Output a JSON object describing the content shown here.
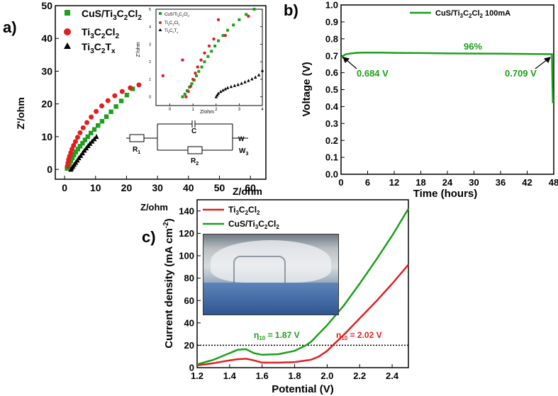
{
  "panels": {
    "a": {
      "letter": "a)"
    },
    "b": {
      "letter": "b)"
    },
    "c": {
      "letter": "c)"
    }
  },
  "chart_data": [
    {
      "id": "a",
      "type": "scatter",
      "title": "",
      "xlabel": "Z/ohm",
      "ylabel": "Z'/ohm",
      "xlim": [
        -3,
        65
      ],
      "ylim": [
        -3,
        50
      ],
      "xticks": [
        "0",
        "10",
        "20",
        "30",
        "40",
        "50",
        "60"
      ],
      "xtick_values": [
        0,
        10,
        20,
        30,
        40,
        50,
        60
      ],
      "yticks": [
        "0",
        "10",
        "20",
        "30",
        "40",
        "50"
      ],
      "ytick_values": [
        0,
        10,
        20,
        30,
        40,
        50
      ],
      "legend": [
        "CuS/Ti3C2Cl2",
        "Ti3C2Cl2",
        "Ti3C2Tx"
      ],
      "series": [
        {
          "name": "CuS/Ti3C2Cl2",
          "color": "#1aa01a",
          "marker": "square",
          "x": [
            0.8,
            1.2,
            1.6,
            2.0,
            2.5,
            3.0,
            3.6,
            4.3,
            5.0,
            5.8,
            6.6,
            7.5,
            8.5,
            9.6,
            10.8,
            12.1,
            13.5,
            15.0,
            16.6,
            18.3,
            20.1,
            22.0
          ],
          "y": [
            0.3,
            1.0,
            1.8,
            2.6,
            3.5,
            4.4,
            5.3,
            6.2,
            7.1,
            8.0,
            9.0,
            10.0,
            11.1,
            12.2,
            13.4,
            14.7,
            16.1,
            17.6,
            19.2,
            20.9,
            22.7,
            24.6
          ]
        },
        {
          "name": "Ti3C2Cl2",
          "color": "#e02020",
          "marker": "circle",
          "x": [
            0.9,
            1.1,
            1.3,
            1.6,
            2.0,
            2.4,
            2.9,
            3.5,
            4.2,
            5.0,
            6.0,
            7.2,
            8.6,
            10.2,
            12.0,
            14.0,
            16.2,
            18.6,
            21.2,
            24.0
          ],
          "y": [
            1.0,
            2.0,
            3.0,
            4.0,
            5.1,
            6.2,
            7.3,
            8.5,
            9.8,
            11.2,
            12.7,
            14.3,
            16.0,
            17.7,
            19.4,
            21.0,
            22.5,
            23.8,
            24.9,
            25.8
          ]
        },
        {
          "name": "Ti3C2Tx",
          "color": "#000000",
          "marker": "triangle",
          "x": [
            2.0,
            2.3,
            2.7,
            3.1,
            3.6,
            4.1,
            4.6,
            5.2,
            5.8,
            6.4,
            7.0,
            7.6,
            8.2,
            8.9,
            9.6,
            10.3
          ],
          "y": [
            0.0,
            0.4,
            0.9,
            1.5,
            2.1,
            2.8,
            3.5,
            4.2,
            5.0,
            5.8,
            6.5,
            7.2,
            7.9,
            8.6,
            9.3,
            10.0
          ]
        }
      ],
      "inset": {
        "xlabel": "Z/ohm",
        "ylabel": "Z'/ohm",
        "xlim": [
          -0.6,
          4
        ],
        "ylim": [
          -0.5,
          5
        ],
        "xticks": [
          "0",
          "1",
          "2",
          "3",
          "4"
        ],
        "xtick_values": [
          0,
          1,
          2,
          3,
          4
        ],
        "yticks": [
          "0",
          "1",
          "2",
          "3",
          "4",
          "5"
        ],
        "ytick_values": [
          0,
          1,
          2,
          3,
          4,
          5
        ],
        "legend": [
          "CuS/Ti3C2Cl2",
          "Ti3C2Cl2",
          "Ti3C2Tx"
        ],
        "series": [
          {
            "name": "CuS/Ti3C2Cl2",
            "color": "#1aa01a",
            "marker": "square",
            "x": [
              0.55,
              0.65,
              0.75,
              0.85,
              0.95,
              1.05,
              1.15,
              1.25,
              1.38,
              1.5,
              1.65,
              1.8,
              1.95,
              2.1,
              2.3,
              2.5,
              2.75,
              3.0,
              3.3,
              3.65
            ],
            "y": [
              0.0,
              0.15,
              0.35,
              0.55,
              0.75,
              0.95,
              1.2,
              1.45,
              1.7,
              2.0,
              2.3,
              2.6,
              2.9,
              3.2,
              3.5,
              3.8,
              4.1,
              4.4,
              4.7,
              5.0
            ]
          },
          {
            "name": "Ti3C2Cl2",
            "color": "#e02020",
            "marker": "circle",
            "x": [
              -0.3,
              0.55,
              0.7,
              0.8,
              0.9,
              1.0,
              1.1,
              1.2,
              1.35,
              1.5,
              1.7,
              1.9,
              2.1,
              2.4,
              3.4
            ],
            "y": [
              1.2,
              2.1,
              0.0,
              0.3,
              0.6,
              1.0,
              1.35,
              1.7,
              2.1,
              2.5,
              2.9,
              3.3,
              4.4,
              3.5,
              4.6
            ]
          },
          {
            "name": "Ti3C2Tx",
            "color": "#000000",
            "marker": "triangle",
            "x": [
              2.0,
              2.05,
              2.1,
              2.2,
              2.3,
              2.4,
              2.5,
              2.65,
              2.8,
              2.95,
              3.1,
              3.25,
              3.4,
              3.55,
              3.7,
              3.85,
              4.0
            ],
            "y": [
              0.0,
              0.1,
              0.2,
              0.3,
              0.38,
              0.45,
              0.52,
              0.58,
              0.64,
              0.7,
              0.77,
              0.85,
              0.93,
              1.02,
              1.12,
              1.25,
              1.5
            ]
          }
        ]
      },
      "circuit": {
        "labels": [
          "R1",
          "C",
          "R2",
          "W3"
        ]
      }
    },
    {
      "id": "b",
      "type": "line",
      "title": "",
      "xlabel": "Time (hours)",
      "ylabel": "Voltage (V)",
      "xlim": [
        0,
        48
      ],
      "ylim": [
        0.0,
        1.0
      ],
      "xticks": [
        "0",
        "6",
        "12",
        "18",
        "24",
        "30",
        "36",
        "42",
        "48"
      ],
      "xtick_values": [
        0,
        6,
        12,
        18,
        24,
        30,
        36,
        42,
        48
      ],
      "yticks": [
        "0.0",
        "0.1",
        "0.2",
        "0.3",
        "0.4",
        "0.5",
        "0.6",
        "0.7",
        "0.8",
        "0.9",
        "1.0"
      ],
      "ytick_values": [
        0.0,
        0.1,
        0.2,
        0.3,
        0.4,
        0.5,
        0.6,
        0.7,
        0.8,
        0.9,
        1.0
      ],
      "legend": [
        "CuS/Ti3C2Cl2  100mA"
      ],
      "series": [
        {
          "name": "CuS/Ti3C2Cl2  100mA",
          "color": "#1aa01a",
          "x": [
            0,
            0.5,
            1,
            2,
            3,
            4,
            6,
            9,
            12,
            18,
            24,
            30,
            36,
            42,
            47.6,
            47.7,
            47.8
          ],
          "y": [
            0.684,
            0.7,
            0.708,
            0.713,
            0.716,
            0.718,
            0.719,
            0.719,
            0.717,
            0.716,
            0.714,
            0.713,
            0.712,
            0.711,
            0.709,
            0.55,
            0.42
          ]
        }
      ],
      "annotations": [
        {
          "text": "0.684 V",
          "x": 0,
          "y": 0.684
        },
        {
          "text": "0.709 V",
          "x": 47.6,
          "y": 0.709
        },
        {
          "text": "96%",
          "x": 24,
          "y": 0.76
        }
      ]
    },
    {
      "id": "c",
      "type": "line",
      "title": "",
      "xlabel": "Potential (V)",
      "ylabel": "Current density (mA cm-2)",
      "xlim": [
        1.2,
        2.5
      ],
      "ylim": [
        0,
        150
      ],
      "xticks": [
        "1.2",
        "1.4",
        "1.6",
        "1.8",
        "2.0",
        "2.2",
        "2.4"
      ],
      "xtick_values": [
        1.2,
        1.4,
        1.6,
        1.8,
        2.0,
        2.2,
        2.4
      ],
      "yticks": [
        "0",
        "20",
        "40",
        "60",
        "80",
        "100",
        "120",
        "140"
      ],
      "ytick_values": [
        0,
        20,
        40,
        60,
        80,
        100,
        120,
        140
      ],
      "legend": [
        "Ti3C2Cl2",
        "CuS/Ti3C2Cl2"
      ],
      "series": [
        {
          "name": "Ti3C2Cl2",
          "color": "#e02020",
          "x": [
            1.2,
            1.3,
            1.4,
            1.45,
            1.5,
            1.55,
            1.6,
            1.7,
            1.8,
            1.9,
            1.95,
            2.0,
            2.05,
            2.1,
            2.2,
            2.3,
            2.4,
            2.5
          ],
          "y": [
            2.0,
            4.0,
            6.5,
            7.5,
            8.0,
            6.5,
            4.5,
            4.5,
            5.0,
            7.0,
            10.0,
            15.0,
            22.0,
            29.0,
            44.0,
            59.0,
            75.0,
            92.0
          ]
        },
        {
          "name": "CuS/Ti3C2Cl2",
          "color": "#1aa01a",
          "x": [
            1.2,
            1.3,
            1.4,
            1.45,
            1.5,
            1.55,
            1.6,
            1.7,
            1.8,
            1.87,
            1.9,
            2.0,
            2.1,
            2.2,
            2.3,
            2.4,
            2.5
          ],
          "y": [
            3.0,
            7.0,
            13.0,
            16.0,
            16.5,
            13.0,
            11.5,
            12.0,
            15.0,
            20.0,
            23.0,
            38.0,
            55.0,
            75.0,
            96.0,
            118.0,
            142.0
          ]
        }
      ],
      "reference_line": {
        "y": 20,
        "style": "dotted"
      },
      "annotations": [
        {
          "text": "η10 = 1.87 V",
          "color": "#1aa01a"
        },
        {
          "text": "η10 = 2.02 V",
          "color": "#e02020"
        }
      ],
      "overlay_top_label": "Z/ohm"
    }
  ]
}
